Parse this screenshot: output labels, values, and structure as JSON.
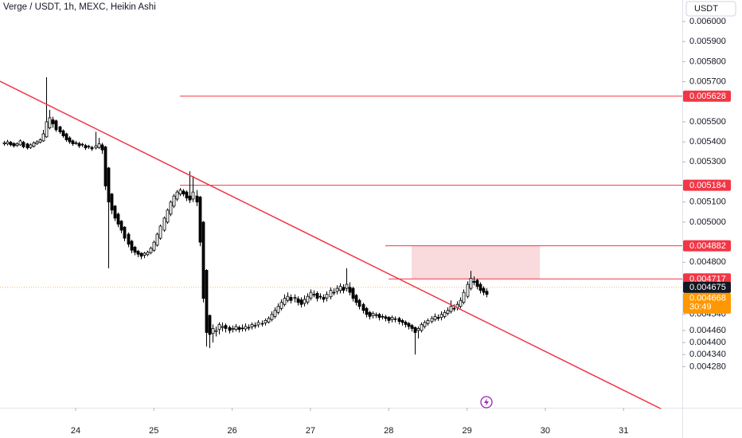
{
  "chart_data": {
    "type": "candlestick",
    "title": "Verge / USDT, 1h, MEXC, Heikin Ashi",
    "unit_button": "USDT",
    "x": [
      23.083,
      23.125,
      23.167,
      23.208,
      23.25,
      23.292,
      23.333,
      23.375,
      23.417,
      23.458,
      23.5,
      23.542,
      23.583,
      23.625,
      23.667,
      23.708,
      23.75,
      23.792,
      23.833,
      23.875,
      23.917,
      23.958,
      24,
      24.042,
      24.083,
      24.125,
      24.167,
      24.208,
      24.25,
      24.292,
      24.333,
      24.375,
      24.417,
      24.458,
      24.5,
      24.542,
      24.583,
      24.625,
      24.667,
      24.708,
      24.75,
      24.792,
      24.833,
      24.875,
      24.917,
      24.958,
      25,
      25.042,
      25.083,
      25.125,
      25.167,
      25.208,
      25.25,
      25.292,
      25.333,
      25.375,
      25.417,
      25.458,
      25.5,
      25.542,
      25.583,
      25.625,
      25.667,
      25.708,
      25.75,
      25.792,
      25.833,
      25.875,
      25.917,
      25.958,
      26,
      26.042,
      26.083,
      26.125,
      26.167,
      26.208,
      26.25,
      26.292,
      26.333,
      26.375,
      26.417,
      26.458,
      26.5,
      26.542,
      26.583,
      26.625,
      26.667,
      26.708,
      26.75,
      26.792,
      26.833,
      26.875,
      26.917,
      26.958,
      27,
      27.042,
      27.083,
      27.125,
      27.167,
      27.208,
      27.25,
      27.292,
      27.333,
      27.375,
      27.417,
      27.458,
      27.5,
      27.542,
      27.583,
      27.625,
      27.667,
      27.708,
      27.75,
      27.792,
      27.833,
      27.875,
      27.917,
      27.958,
      28,
      28.042,
      28.083,
      28.125,
      28.167,
      28.208,
      28.25,
      28.292,
      28.333,
      28.375,
      28.417,
      28.458,
      28.5,
      28.542,
      28.583,
      28.625,
      28.667,
      28.708,
      28.75,
      28.792,
      28.833,
      28.875,
      28.917,
      28.958,
      29,
      29.042,
      29.083,
      29.125,
      29.167,
      29.208,
      29.25
    ],
    "open": [
      0.00539,
      0.00539,
      0.005398,
      0.005392,
      0.005382,
      0.005385,
      0.005398,
      0.00539,
      0.005372,
      0.005378,
      0.00539,
      0.005398,
      0.005405,
      0.005425,
      0.00547,
      0.00551,
      0.005505,
      0.005475,
      0.005455,
      0.00544,
      0.00542,
      0.005405,
      0.005395,
      0.005392,
      0.005388,
      0.005382,
      0.005378,
      0.005372,
      0.00537,
      0.005372,
      0.005385,
      0.005375,
      0.00527,
      0.00514,
      0.00508,
      0.00504,
      0.005005,
      0.004975,
      0.00494,
      0.004905,
      0.004875,
      0.004855,
      0.004845,
      0.004835,
      0.004838,
      0.004848,
      0.00486,
      0.004885,
      0.00492,
      0.00496,
      0.005,
      0.00504,
      0.00508,
      0.005115,
      0.00514,
      0.005155,
      0.00515,
      0.00513,
      0.005115,
      0.00513,
      0.005125,
      0.005,
      0.00476,
      0.004535,
      0.004445,
      0.004455,
      0.004465,
      0.004475,
      0.004485,
      0.004475,
      0.004465,
      0.004465,
      0.004475,
      0.004472,
      0.004468,
      0.004475,
      0.004478,
      0.004482,
      0.004488,
      0.004492,
      0.004498,
      0.004502,
      0.004515,
      0.00453,
      0.00455,
      0.00457,
      0.00459,
      0.00461,
      0.004625,
      0.00462,
      0.004618,
      0.004612,
      0.004595,
      0.004602,
      0.004622,
      0.00464,
      0.004645,
      0.00463,
      0.004625,
      0.004622,
      0.004628,
      0.00465,
      0.004655,
      0.00466,
      0.004675,
      0.00467,
      0.004675,
      0.00467,
      0.004635,
      0.00461,
      0.00459,
      0.00457,
      0.00455,
      0.004535,
      0.004538,
      0.00454,
      0.00453,
      0.004528,
      0.004525,
      0.004515,
      0.004518,
      0.00452,
      0.00451,
      0.004502,
      0.004495,
      0.004485,
      0.004475,
      0.00446,
      0.00446,
      0.00448,
      0.004495,
      0.004505,
      0.004515,
      0.004525,
      0.004525,
      0.00453,
      0.004545,
      0.004555,
      0.00457,
      0.004575,
      0.00458,
      0.0046,
      0.00463,
      0.00467,
      0.004705,
      0.00471,
      0.00469,
      0.00467,
      0.004655
    ],
    "high": [
      0.005405,
      0.00541,
      0.005405,
      0.005398,
      0.005398,
      0.005412,
      0.005405,
      0.005395,
      0.005392,
      0.005402,
      0.005408,
      0.005418,
      0.00546,
      0.005722,
      0.00556,
      0.005525,
      0.00551,
      0.00548,
      0.005462,
      0.005445,
      0.005428,
      0.005412,
      0.005405,
      0.0054,
      0.005395,
      0.00539,
      0.005385,
      0.00538,
      0.00545,
      0.00542,
      0.005395,
      0.00538,
      0.005275,
      0.005145,
      0.005085,
      0.005048,
      0.00501,
      0.00498,
      0.004948,
      0.004912,
      0.004882,
      0.004862,
      0.00485,
      0.004852,
      0.004858,
      0.004878,
      0.004908,
      0.004948,
      0.004988,
      0.005028,
      0.005068,
      0.005108,
      0.00514,
      0.00516,
      0.00517,
      0.005165,
      0.005158,
      0.005253,
      0.00523,
      0.00516,
      0.00513,
      0.005005,
      0.004765,
      0.00454,
      0.00449,
      0.00448,
      0.0045,
      0.0045,
      0.004495,
      0.004485,
      0.004485,
      0.004492,
      0.004485,
      0.00449,
      0.004495,
      0.00449,
      0.0045,
      0.0045,
      0.004512,
      0.00451,
      0.00452,
      0.00453,
      0.004555,
      0.004575,
      0.004595,
      0.004615,
      0.00464,
      0.00465,
      0.00464,
      0.00464,
      0.00463,
      0.004625,
      0.004635,
      0.004645,
      0.004665,
      0.00466,
      0.004655,
      0.004645,
      0.00464,
      0.004655,
      0.004675,
      0.00467,
      0.004685,
      0.004695,
      0.00469,
      0.00477,
      0.0047,
      0.004678,
      0.004642,
      0.004618,
      0.004598,
      0.004578,
      0.004558,
      0.004555,
      0.00455,
      0.004548,
      0.004542,
      0.004538,
      0.004532,
      0.004535,
      0.00453,
      0.004528,
      0.004518,
      0.00451,
      0.004502,
      0.004492,
      0.00448,
      0.00448,
      0.0045,
      0.00451,
      0.00452,
      0.004532,
      0.004545,
      0.00454,
      0.004555,
      0.004562,
      0.004575,
      0.00461,
      0.00459,
      0.004605,
      0.004625,
      0.004665,
      0.004705,
      0.004757,
      0.00473,
      0.004718,
      0.0047,
      0.00468,
      0.00467
    ],
    "low": [
      0.00538,
      0.005382,
      0.005378,
      0.005372,
      0.005375,
      0.00538,
      0.005368,
      0.005362,
      0.005365,
      0.005372,
      0.005385,
      0.005392,
      0.0054,
      0.00542,
      0.005462,
      0.00547,
      0.00545,
      0.00544,
      0.00542,
      0.0054,
      0.00539,
      0.00538,
      0.005385,
      0.00537,
      0.005375,
      0.00536,
      0.005365,
      0.005355,
      0.005362,
      0.005365,
      0.00534,
      0.00516,
      0.00477,
      0.00504,
      0.005005,
      0.004975,
      0.004945,
      0.004905,
      0.004875,
      0.004845,
      0.004835,
      0.004825,
      0.004815,
      0.00482,
      0.00483,
      0.00484,
      0.004852,
      0.004878,
      0.004912,
      0.004952,
      0.004992,
      0.00503,
      0.00507,
      0.005105,
      0.00513,
      0.005128,
      0.005105,
      0.005095,
      0.0051,
      0.00508,
      0.00488,
      0.0046,
      0.00438,
      0.004372,
      0.0044,
      0.00443,
      0.00444,
      0.004455,
      0.00445,
      0.004445,
      0.00445,
      0.004455,
      0.00445,
      0.004455,
      0.004455,
      0.00446,
      0.004465,
      0.00447,
      0.004475,
      0.00448,
      0.004485,
      0.004495,
      0.004505,
      0.00452,
      0.00454,
      0.00456,
      0.00458,
      0.0046,
      0.004595,
      0.0046,
      0.004585,
      0.004575,
      0.00458,
      0.00459,
      0.00461,
      0.004625,
      0.004605,
      0.004615,
      0.0046,
      0.004605,
      0.004615,
      0.004635,
      0.00464,
      0.004645,
      0.004645,
      0.004655,
      0.004635,
      0.004605,
      0.004585,
      0.004565,
      0.004545,
      0.004525,
      0.004515,
      0.00452,
      0.004522,
      0.00451,
      0.004515,
      0.004505,
      0.004495,
      0.0045,
      0.0045,
      0.00449,
      0.004485,
      0.004475,
      0.004465,
      0.004455,
      0.00434,
      0.00442,
      0.00445,
      0.00447,
      0.004485,
      0.004495,
      0.004505,
      0.004508,
      0.00451,
      0.00452,
      0.004535,
      0.004545,
      0.004555,
      0.00456,
      0.00457,
      0.00459,
      0.00462,
      0.00466,
      0.004685,
      0.004665,
      0.004645,
      0.004635,
      0.004625
    ],
    "close": [
      0.005395,
      0.0054,
      0.005385,
      0.00538,
      0.00539,
      0.005405,
      0.005375,
      0.00537,
      0.005385,
      0.005395,
      0.0054,
      0.00541,
      0.00544,
      0.0055,
      0.00552,
      0.00549,
      0.00546,
      0.00545,
      0.00543,
      0.00541,
      0.0054,
      0.00539,
      0.005395,
      0.00538,
      0.005385,
      0.00537,
      0.005375,
      0.005365,
      0.00538,
      0.00539,
      0.00536,
      0.00518,
      0.0051,
      0.00506,
      0.00502,
      0.00499,
      0.00496,
      0.00492,
      0.00489,
      0.00486,
      0.00485,
      0.00484,
      0.00483,
      0.004845,
      0.00485,
      0.00487,
      0.0049,
      0.00494,
      0.00498,
      0.00502,
      0.00506,
      0.0051,
      0.00513,
      0.00515,
      0.00516,
      0.00514,
      0.00512,
      0.00511,
      0.00515,
      0.0051,
      0.0049,
      0.00462,
      0.00445,
      0.00444,
      0.00447,
      0.00446,
      0.00449,
      0.00448,
      0.00447,
      0.00446,
      0.00447,
      0.00448,
      0.004465,
      0.00447,
      0.00448,
      0.004475,
      0.00449,
      0.004485,
      0.0045,
      0.004495,
      0.00451,
      0.00452,
      0.00454,
      0.00456,
      0.00458,
      0.0046,
      0.00462,
      0.00463,
      0.00461,
      0.004625,
      0.0046,
      0.00459,
      0.004615,
      0.00463,
      0.00465,
      0.00464,
      0.00462,
      0.00463,
      0.004615,
      0.00464,
      0.00466,
      0.00465,
      0.00467,
      0.00468,
      0.00466,
      0.00469,
      0.00465,
      0.00462,
      0.0046,
      0.00458,
      0.00456,
      0.00454,
      0.00453,
      0.004545,
      0.004535,
      0.004525,
      0.00453,
      0.00452,
      0.00451,
      0.004525,
      0.004515,
      0.004505,
      0.0045,
      0.00449,
      0.00448,
      0.00447,
      0.00445,
      0.00447,
      0.00449,
      0.0045,
      0.00451,
      0.00452,
      0.00453,
      0.00452,
      0.00454,
      0.00455,
      0.00456,
      0.00458,
      0.00457,
      0.00459,
      0.00461,
      0.00465,
      0.00469,
      0.00472,
      0.0047,
      0.00468,
      0.00466,
      0.00465,
      0.00464
    ],
    "up_color": "#ffffff",
    "down_color": "#000000",
    "outline_color": "#000000",
    "xlim": [
      23.034,
      31.75
    ],
    "xticks": [
      24,
      25,
      26,
      27,
      28,
      29,
      30,
      31
    ],
    "ylim": [
      0.004075,
      0.006107
    ],
    "yticks": [
      {
        "value": 0.006,
        "label": "0.006000"
      },
      {
        "value": 0.0059,
        "label": "0.005900"
      },
      {
        "value": 0.0058,
        "label": "0.005800"
      },
      {
        "value": 0.0057,
        "label": "0.005700"
      },
      {
        "value": 0.0055,
        "label": "0.005500"
      },
      {
        "value": 0.0054,
        "label": "0.005400"
      },
      {
        "value": 0.0053,
        "label": "0.005300"
      },
      {
        "value": 0.0051,
        "label": "0.005100"
      },
      {
        "value": 0.005,
        "label": "0.005000"
      },
      {
        "value": 0.0048,
        "label": "0.004800"
      },
      {
        "value": 0.00454,
        "label": "0.004540"
      },
      {
        "value": 0.00446,
        "label": "0.004460"
      },
      {
        "value": 0.0044,
        "label": "0.004400"
      },
      {
        "value": 0.00434,
        "label": "0.004340"
      },
      {
        "value": 0.00428,
        "label": "0.004280"
      }
    ],
    "grid": false,
    "trendline": {
      "x": [
        23.034,
        31.477
      ],
      "y": [
        0.005702,
        0.00407
      ],
      "color": "#f23645"
    },
    "levels": [
      {
        "value": 0.005628,
        "x_start": 25.333,
        "color": "#f23645"
      },
      {
        "value": 0.005184,
        "x_start": 25.333,
        "color": "#f23645"
      },
      {
        "value": 0.004882,
        "x_start": 27.957,
        "color": "#f23645"
      },
      {
        "value": 0.004717,
        "x_start": 27.998,
        "color": "#f23645"
      }
    ],
    "zone": {
      "x": [
        28.293,
        29.931
      ],
      "y": [
        0.004717,
        0.004882
      ],
      "color": "#f9dadd"
    },
    "last_price": 0.004675,
    "last_price_color": "#131722",
    "quote_price": 0.004668,
    "quote_color": "#ff9800",
    "countdown": "30:49"
  }
}
